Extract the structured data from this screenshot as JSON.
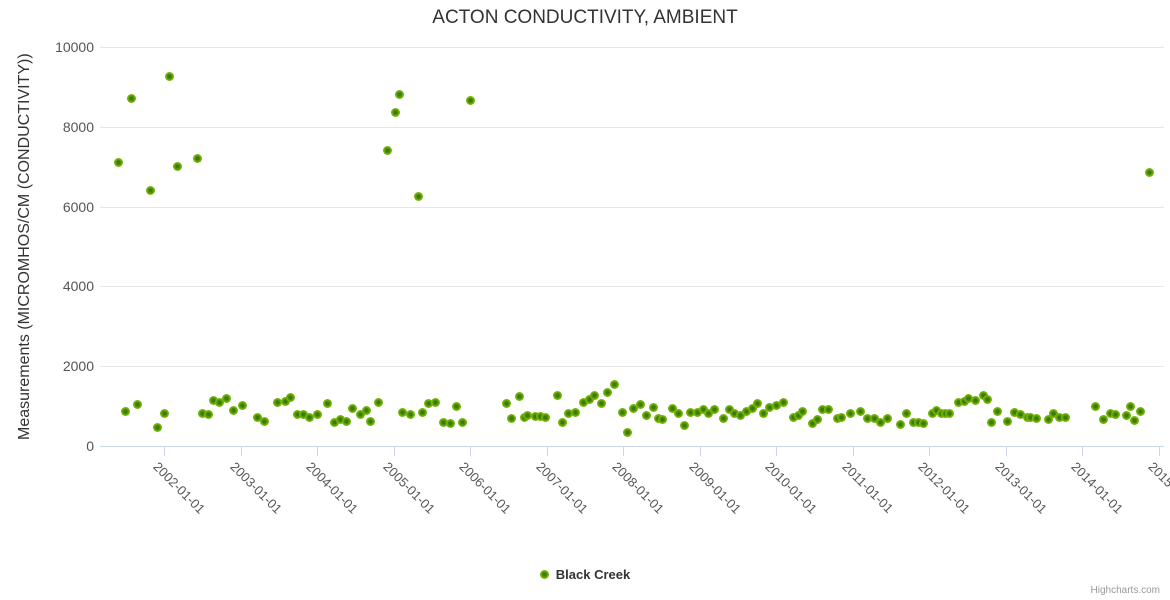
{
  "header": {
    "title": "ACTON CONDUCTIVITY, AMBIENT"
  },
  "credits": {
    "label": "Highcharts.com"
  },
  "legend": {
    "items": [
      {
        "label": "Black Creek",
        "marker_color": "#7ab500"
      }
    ]
  },
  "colors": {
    "point_outer": "#7cbb0a",
    "point_core": "#3a7a08",
    "gridline": "#e6e6e6",
    "axis_line": "#ccd6eb",
    "title_text": "#333333",
    "tick_text": "#555555",
    "credits_text": "#999999"
  },
  "chart_data": {
    "type": "scatter",
    "title": "ACTON CONDUCTIVITY, AMBIENT",
    "xlabel": "",
    "ylabel": "Measurements (MICROMHOS/CM (CONDUCTIVITY))",
    "grid": true,
    "legend_position": "bottom",
    "ylim": [
      0,
      10000
    ],
    "y_ticks": [
      0,
      2000,
      4000,
      6000,
      8000,
      10000
    ],
    "x_ticks_years": [
      2002,
      2003,
      2004,
      2005,
      2006,
      2007,
      2008,
      2009,
      2010,
      2011,
      2012,
      2013,
      2014,
      2015
    ],
    "x_tick_labels": [
      "2002-01-01",
      "2003-01-01",
      "2004-01-01",
      "2005-01-01",
      "2006-01-01",
      "2007-01-01",
      "2008-01-01",
      "2009-01-01",
      "2010-01-01",
      "2011-01-01",
      "2012-01-01",
      "2013-01-01",
      "2014-01-01",
      "2015-01-01"
    ],
    "xlim_years": [
      2001.16,
      2015.07
    ],
    "series": [
      {
        "name": "Black Creek",
        "color": "#7ab500",
        "points": [
          [
            2001.4,
            7100
          ],
          [
            2001.49,
            875
          ],
          [
            2001.57,
            8700
          ],
          [
            2001.65,
            1050
          ],
          [
            2001.82,
            6400
          ],
          [
            2001.91,
            475
          ],
          [
            2002.0,
            825
          ],
          [
            2002.07,
            9250
          ],
          [
            2002.17,
            7000
          ],
          [
            2002.43,
            7200
          ],
          [
            2002.5,
            825
          ],
          [
            2002.58,
            800
          ],
          [
            2002.64,
            1150
          ],
          [
            2002.72,
            1100
          ],
          [
            2002.81,
            1200
          ],
          [
            2002.9,
            900
          ],
          [
            2003.02,
            1025
          ],
          [
            2003.22,
            725
          ],
          [
            2003.31,
            625
          ],
          [
            2003.48,
            1100
          ],
          [
            2003.58,
            1125
          ],
          [
            2003.65,
            1225
          ],
          [
            2003.74,
            800
          ],
          [
            2003.82,
            800
          ],
          [
            2003.9,
            725
          ],
          [
            2004.0,
            800
          ],
          [
            2004.14,
            1075
          ],
          [
            2004.22,
            600
          ],
          [
            2004.3,
            675
          ],
          [
            2004.38,
            625
          ],
          [
            2004.46,
            950
          ],
          [
            2004.56,
            800
          ],
          [
            2004.64,
            900
          ],
          [
            2004.69,
            625
          ],
          [
            2004.8,
            1100
          ],
          [
            2004.92,
            7400
          ],
          [
            2005.02,
            8350
          ],
          [
            2005.07,
            8800
          ],
          [
            2005.12,
            850
          ],
          [
            2005.22,
            800
          ],
          [
            2005.32,
            6250
          ],
          [
            2005.37,
            850
          ],
          [
            2005.46,
            1075
          ],
          [
            2005.54,
            1100
          ],
          [
            2005.65,
            600
          ],
          [
            2005.74,
            575
          ],
          [
            2005.82,
            1000
          ],
          [
            2005.9,
            600
          ],
          [
            2006.0,
            8650
          ],
          [
            2006.48,
            1075
          ],
          [
            2006.54,
            700
          ],
          [
            2006.64,
            1250
          ],
          [
            2006.71,
            725
          ],
          [
            2006.75,
            775
          ],
          [
            2006.85,
            750
          ],
          [
            2006.92,
            750
          ],
          [
            2006.99,
            725
          ],
          [
            2007.14,
            1275
          ],
          [
            2007.2,
            600
          ],
          [
            2007.29,
            825
          ],
          [
            2007.37,
            850
          ],
          [
            2007.48,
            1100
          ],
          [
            2007.56,
            1175
          ],
          [
            2007.62,
            1275
          ],
          [
            2007.71,
            1075
          ],
          [
            2007.8,
            1330
          ],
          [
            2007.88,
            1530
          ],
          [
            2007.99,
            850
          ],
          [
            2008.05,
            350
          ],
          [
            2008.14,
            950
          ],
          [
            2008.22,
            1050
          ],
          [
            2008.31,
            775
          ],
          [
            2008.39,
            975
          ],
          [
            2008.46,
            700
          ],
          [
            2008.52,
            675
          ],
          [
            2008.64,
            950
          ],
          [
            2008.72,
            825
          ],
          [
            2008.8,
            525
          ],
          [
            2008.88,
            850
          ],
          [
            2008.97,
            850
          ],
          [
            2009.05,
            925
          ],
          [
            2009.11,
            825
          ],
          [
            2009.2,
            925
          ],
          [
            2009.31,
            700
          ],
          [
            2009.39,
            925
          ],
          [
            2009.45,
            825
          ],
          [
            2009.53,
            775
          ],
          [
            2009.61,
            875
          ],
          [
            2009.69,
            950
          ],
          [
            2009.75,
            1075
          ],
          [
            2009.83,
            825
          ],
          [
            2009.91,
            975
          ],
          [
            2010.0,
            1025
          ],
          [
            2010.09,
            1100
          ],
          [
            2010.22,
            725
          ],
          [
            2010.29,
            775
          ],
          [
            2010.35,
            875
          ],
          [
            2010.47,
            575
          ],
          [
            2010.54,
            675
          ],
          [
            2010.61,
            925
          ],
          [
            2010.69,
            925
          ],
          [
            2010.8,
            700
          ],
          [
            2010.86,
            725
          ],
          [
            2010.97,
            825
          ],
          [
            2011.1,
            875
          ],
          [
            2011.2,
            700
          ],
          [
            2011.28,
            700
          ],
          [
            2011.37,
            600
          ],
          [
            2011.46,
            700
          ],
          [
            2011.62,
            550
          ],
          [
            2011.71,
            825
          ],
          [
            2011.79,
            600
          ],
          [
            2011.86,
            600
          ],
          [
            2011.92,
            575
          ],
          [
            2012.04,
            825
          ],
          [
            2012.09,
            900
          ],
          [
            2012.16,
            825
          ],
          [
            2012.22,
            825
          ],
          [
            2012.27,
            825
          ],
          [
            2012.38,
            1100
          ],
          [
            2012.46,
            1125
          ],
          [
            2012.52,
            1200
          ],
          [
            2012.61,
            1150
          ],
          [
            2012.71,
            1275
          ],
          [
            2012.76,
            1175
          ],
          [
            2012.82,
            600
          ],
          [
            2012.89,
            875
          ],
          [
            2013.03,
            625
          ],
          [
            2013.11,
            850
          ],
          [
            2013.2,
            800
          ],
          [
            2013.28,
            725
          ],
          [
            2013.33,
            725
          ],
          [
            2013.4,
            700
          ],
          [
            2013.56,
            675
          ],
          [
            2013.63,
            825
          ],
          [
            2013.71,
            725
          ],
          [
            2013.78,
            725
          ],
          [
            2014.17,
            1000
          ],
          [
            2014.28,
            675
          ],
          [
            2014.37,
            825
          ],
          [
            2014.43,
            800
          ],
          [
            2014.58,
            775
          ],
          [
            2014.63,
            1000
          ],
          [
            2014.69,
            650
          ],
          [
            2014.76,
            875
          ],
          [
            2014.88,
            6850
          ]
        ]
      }
    ]
  }
}
